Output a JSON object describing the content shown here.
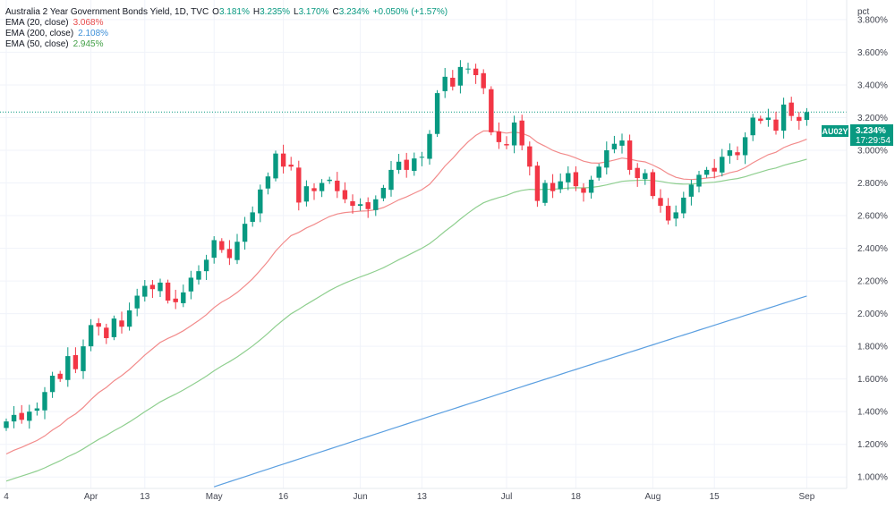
{
  "header": {
    "title": "Australia 2 Year Government Bonds Yield, 1D, TVC",
    "ohlc": [
      {
        "k": "O",
        "v": "3.181%"
      },
      {
        "k": "H",
        "v": "3.235%"
      },
      {
        "k": "L",
        "v": "3.170%"
      },
      {
        "k": "C",
        "v": "3.234%"
      }
    ],
    "change": "+0.050% (+1.57%)",
    "indicators": [
      {
        "label": "EMA (20, close)",
        "value": "3.068%",
        "color": "#e84b4b"
      },
      {
        "label": "EMA (200, close)",
        "value": "2.108%",
        "color": "#3d8fd8"
      },
      {
        "label": "EMA (50, close)",
        "value": "2.945%",
        "color": "#43a047"
      }
    ]
  },
  "price_axis": {
    "unit": "pct",
    "tag_symbol": "AU02Y",
    "tag_price": "3.234%",
    "tag_countdown": "17:29:54"
  },
  "colors": {
    "up": "#089981",
    "down": "#f23645",
    "ema20": "#f28b8b",
    "ema50": "#8fcf8f",
    "ema200": "#5b9fe0",
    "last_price_line": "#089981"
  },
  "chart_data": {
    "type": "candlestick",
    "title": "Australia 2 Year Government Bonds Yield, 1D, TVC",
    "ylabel": "pct",
    "ylim": [
      0.93,
      3.92
    ],
    "y_ticks": [
      "3.800%",
      "3.600%",
      "3.400%",
      "3.200%",
      "3.000%",
      "2.800%",
      "2.600%",
      "2.400%",
      "2.200%",
      "2.000%",
      "1.800%",
      "1.600%",
      "1.400%",
      "1.200%",
      "1.000%"
    ],
    "x_ticks": [
      "4",
      "Apr",
      "13",
      "May",
      "16",
      "Jun",
      "13",
      "Jul",
      "18",
      "Aug",
      "15",
      "Sep"
    ],
    "grid": true,
    "closes": [
      1.34,
      1.38,
      1.35,
      1.4,
      1.42,
      1.52,
      1.62,
      1.6,
      1.74,
      1.66,
      1.8,
      1.93,
      1.92,
      1.85,
      1.97,
      1.92,
      2.02,
      2.11,
      2.17,
      2.15,
      2.19,
      2.08,
      2.07,
      2.13,
      2.22,
      2.26,
      2.33,
      2.45,
      2.39,
      2.34,
      2.44,
      2.55,
      2.62,
      2.76,
      2.84,
      2.98,
      2.9,
      2.9,
      2.68,
      2.78,
      2.75,
      2.8,
      2.82,
      2.75,
      2.7,
      2.66,
      2.67,
      2.64,
      2.7,
      2.77,
      2.88,
      2.93,
      2.88,
      2.95,
      2.96,
      3.1,
      3.35,
      3.45,
      3.39,
      3.51,
      3.5,
      3.46,
      3.38,
      3.11,
      3.05,
      3.03,
      3.17,
      3.03,
      2.9,
      2.69,
      2.8,
      2.75,
      2.81,
      2.86,
      2.78,
      2.74,
      2.82,
      2.9,
      3.0,
      3.04,
      3.06,
      2.88,
      2.83,
      2.86,
      2.72,
      2.66,
      2.57,
      2.62,
      2.71,
      2.79,
      2.85,
      2.88,
      2.87,
      2.96,
      3.0,
      2.97,
      3.08,
      3.2,
      3.18,
      3.2,
      3.12,
      3.28,
      3.21,
      3.18,
      3.234
    ],
    "ema20_end": 3.068,
    "ema50_end": 2.945,
    "ema200_end": 2.108,
    "last_price": 3.234
  }
}
